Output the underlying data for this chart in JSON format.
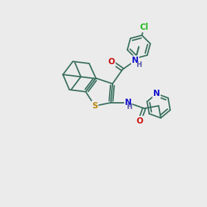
{
  "bg_color": "#ebebeb",
  "bond_color": "#3a7060",
  "bond_width": 1.4,
  "atom_colors": {
    "N": "#1010cc",
    "O": "#cc1010",
    "S": "#b8860b",
    "Cl": "#22bb22",
    "H_label": "#5555aa"
  },
  "font_size": 8.5
}
